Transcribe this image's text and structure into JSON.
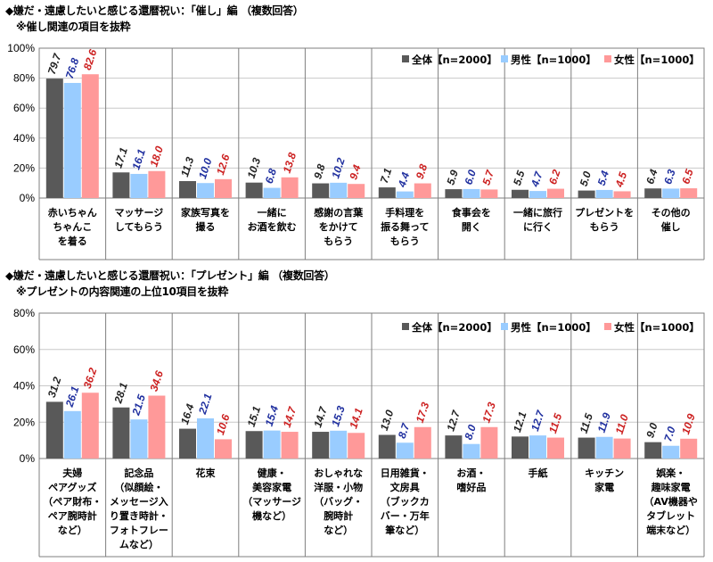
{
  "colors": {
    "all": "#595959",
    "male": "#99ccff",
    "female": "#ff9999",
    "male_label": "#1f2f9f",
    "female_label": "#cc1f1f",
    "all_label": "#222222"
  },
  "chart_data": [
    {
      "type": "bar",
      "title": "◆嫌だ・遠慮したいと感じる還暦祝い：「催し」編 （複数回答）",
      "subtitle": "※催し関連の項目を抜粋",
      "ylim": [
        0,
        100
      ],
      "yticks": [
        "0%",
        "20%",
        "40%",
        "60%",
        "80%",
        "100%"
      ],
      "legend_position": "top-right",
      "categories": [
        [
          "赤いちゃん",
          "ちゃんこ",
          "を着る"
        ],
        [
          "マッサージ",
          "してもらう"
        ],
        [
          "家族写真を",
          "撮る"
        ],
        [
          "一緒に",
          "お酒を飲む"
        ],
        [
          "感謝の言葉",
          "をかけて",
          "もらう"
        ],
        [
          "手料理を",
          "振る舞って",
          "もらう"
        ],
        [
          "食事会を",
          "開く"
        ],
        [
          "一緒に旅行",
          "に行く"
        ],
        [
          "プレゼントを",
          "もらう"
        ],
        [
          "その他の",
          "催し"
        ]
      ],
      "series": [
        {
          "name": "全体【n=2000】",
          "values": [
            79.7,
            17.1,
            11.3,
            10.3,
            9.8,
            7.1,
            5.9,
            5.5,
            5.0,
            6.4
          ]
        },
        {
          "name": "男性【n=1000】",
          "values": [
            76.8,
            16.1,
            10.0,
            6.8,
            10.2,
            4.4,
            6.0,
            4.7,
            5.4,
            6.3
          ]
        },
        {
          "name": "女性【n=1000】",
          "values": [
            82.6,
            18.0,
            12.6,
            13.8,
            9.4,
            9.8,
            5.7,
            6.2,
            4.5,
            6.5
          ]
        }
      ]
    },
    {
      "type": "bar",
      "title": "◆嫌だ・遠慮したいと感じる還暦祝い：「プレゼント」編 （複数回答）",
      "subtitle": "※プレゼントの内容関連の上位10項目を抜粋",
      "ylim": [
        0,
        80
      ],
      "yticks": [
        "0%",
        "20%",
        "40%",
        "60%",
        "80%"
      ],
      "legend_position": "top-right",
      "categories": [
        [
          "夫婦",
          "ペアグッズ",
          "（ペア財布・",
          "ペア腕時計",
          "など）"
        ],
        [
          "記念品",
          "（似顔絵・",
          "メッセージ入",
          "り置き時計・",
          "フォトフレー",
          "ムなど）"
        ],
        [
          "花束"
        ],
        [
          "健康・",
          "美容家電",
          "（マッサージ",
          "機など）"
        ],
        [
          "おしゃれな",
          "洋服・小物",
          "（バッグ・",
          "腕時計",
          "など）"
        ],
        [
          "日用雑貨・",
          "文房具",
          "（ブックカ",
          "バー・万年",
          "筆など）"
        ],
        [
          "お酒・",
          "嗜好品"
        ],
        [
          "手紙"
        ],
        [
          "キッチン",
          "家電"
        ],
        [
          "娯楽・",
          "趣味家電",
          "（AV機器や",
          "タブレット",
          "端末など）"
        ]
      ],
      "series": [
        {
          "name": "全体【n=2000】",
          "values": [
            31.2,
            28.1,
            16.4,
            15.1,
            14.7,
            13.0,
            12.7,
            12.1,
            11.5,
            9.0
          ]
        },
        {
          "name": "男性【n=1000】",
          "values": [
            26.1,
            21.5,
            22.1,
            15.4,
            15.3,
            8.7,
            8.0,
            12.7,
            11.9,
            7.0
          ]
        },
        {
          "name": "女性【n=1000】",
          "values": [
            36.2,
            34.6,
            10.6,
            14.7,
            14.1,
            17.3,
            17.3,
            11.5,
            11.0,
            10.9
          ]
        }
      ]
    }
  ]
}
